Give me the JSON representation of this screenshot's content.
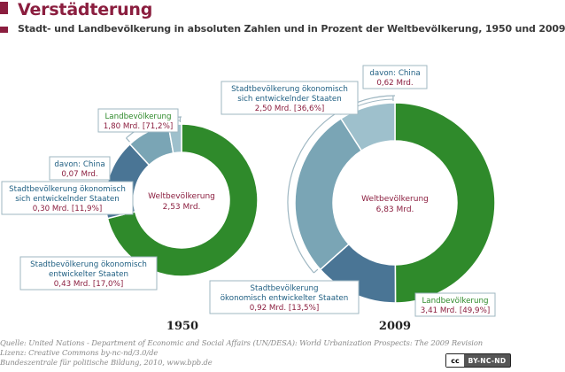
{
  "header": {
    "title": "Verstädterung",
    "subtitle": "Stadt- und Landbevölkerung in absoluten Zahlen und in Prozent der Weltbevölkerung, 1950 und 2009"
  },
  "colors": {
    "accent": "#8b1e3f",
    "land": "#2f8a2b",
    "developing": "#7aa5b5",
    "china": "#9ec0cc",
    "developed": "#4a7595",
    "bracket": "#9fb7c2"
  },
  "chart_data": [
    {
      "type": "pie",
      "year": "1950",
      "center_label": "Weltbevölkerung",
      "center_value": "2,53 Mrd.",
      "slices": [
        {
          "key": "land",
          "label": "Landbevölkerung",
          "value_text": "1,80 Mrd. [71,2%]",
          "value": 1.8,
          "percent": 71.2
        },
        {
          "key": "developed",
          "label": "Stadtbevölkerung ökonomisch entwickelter Staaten",
          "label_lines": [
            "Stadtbevölkerung ökonomisch",
            "entwickelter Staaten"
          ],
          "value_text": "0,43 Mrd. [17,0%]",
          "value": 0.43,
          "percent": 17.0
        },
        {
          "key": "developing",
          "label": "Stadtbevölkerung ökonomisch sich entwickelnder Staaten",
          "label_lines": [
            "Stadtbevölkerung ökonomisch",
            "sich entwickelnder Staaten"
          ],
          "value_text": "0,30 Mrd. [11,9%]",
          "value": 0.3,
          "percent": 11.9
        },
        {
          "key": "china",
          "label": "davon: China",
          "value_text": "0,07 Mrd.",
          "value": 0.07,
          "part_of": "developing"
        }
      ]
    },
    {
      "type": "pie",
      "year": "2009",
      "center_label": "Weltbevölkerung",
      "center_value": "6,83 Mrd.",
      "slices": [
        {
          "key": "land",
          "label": "Landbevölkerung",
          "value_text": "3,41 Mrd. [49,9%]",
          "value": 3.41,
          "percent": 49.9
        },
        {
          "key": "developed",
          "label": "Stadtbevölkerung ökonomisch entwickelter Staaten",
          "label_lines": [
            "Stadtbevölkerung",
            "ökonomisch entwickelter Staaten"
          ],
          "value_text": "0,92 Mrd. [13,5%]",
          "value": 0.92,
          "percent": 13.5
        },
        {
          "key": "developing",
          "label": "Stadtbevölkerung ökonomisch sich entwickelnder Staaten",
          "label_lines": [
            "Stadtbevölkerung ökonomisch",
            "sich entwickelnder Staaten"
          ],
          "value_text": "2,50 Mrd. [36,6%]",
          "value": 2.5,
          "percent": 36.6
        },
        {
          "key": "china",
          "label": "davon: China",
          "value_text": "0,62 Mrd.",
          "value": 0.62,
          "part_of": "developing"
        }
      ]
    }
  ],
  "footer": {
    "source": "Quelle: United Nations - Department of Economic and Social Affairs (UN/DESA): World Urbanization Prospects: The 2009 Revision",
    "license": "Lizenz: Creative Commons  by-nc-nd/3.0/de",
    "publisher": "Bundeszentrale für politische Bildung, 2010, www.bpb.de",
    "cc_logo": "cc",
    "cc_label": "BY-NC-ND"
  }
}
